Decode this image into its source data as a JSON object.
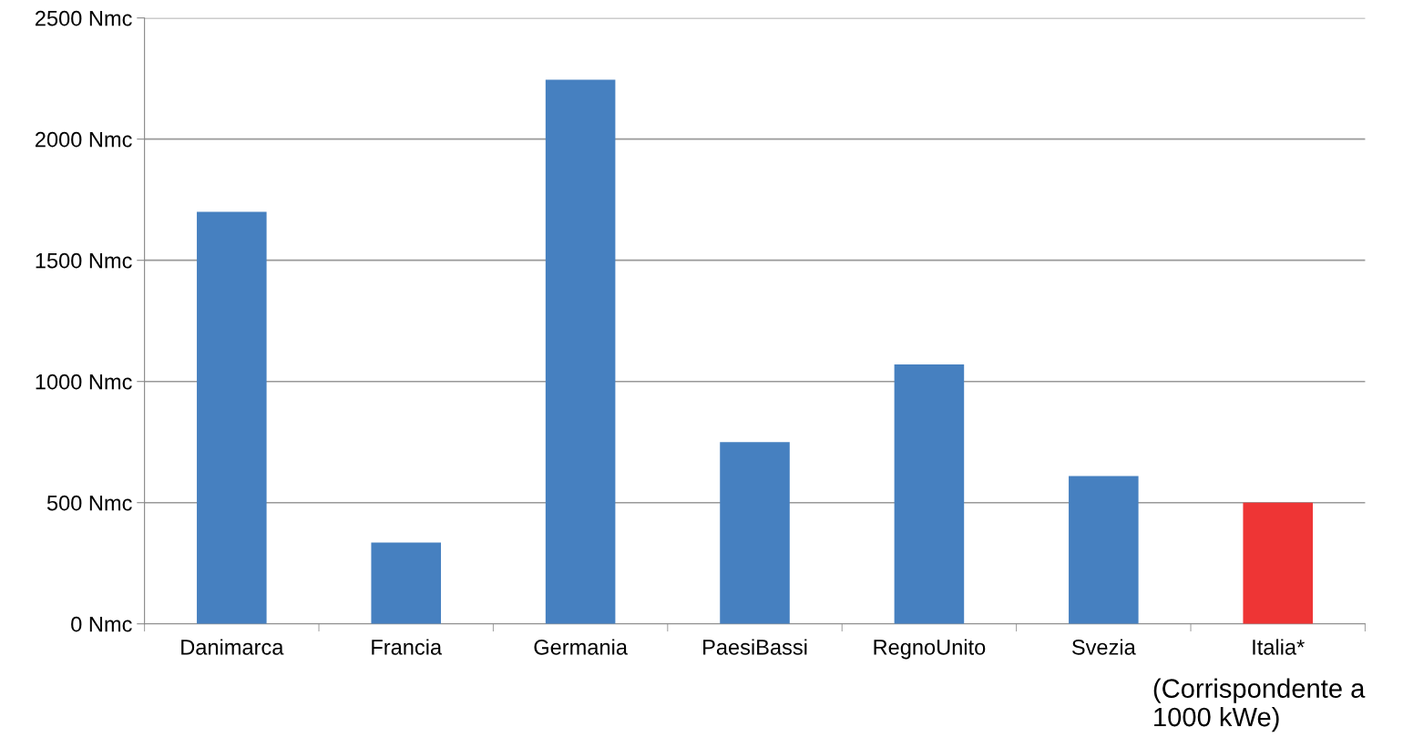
{
  "chart_data": {
    "type": "bar",
    "categories": [
      "Danimarca",
      "Francia",
      "Germania",
      "PaesiBassi",
      "RegnoUnito",
      "Svezia",
      "Italia*"
    ],
    "values": [
      1700,
      335,
      2245,
      750,
      1070,
      610,
      500
    ],
    "colors": [
      "#4680c0",
      "#4680c0",
      "#4680c0",
      "#4680c0",
      "#4680c0",
      "#4680c0",
      "#ee3535"
    ],
    "ylim": [
      0,
      2500
    ],
    "yticks": [
      {
        "value": 0,
        "label": "0 Nmc"
      },
      {
        "value": 500,
        "label": "500 Nmc"
      },
      {
        "value": 1000,
        "label": "1000 Nmc"
      },
      {
        "value": 1500,
        "label": "1500 Nmc"
      },
      {
        "value": 2000,
        "label": "2000 Nmc"
      },
      {
        "value": 2500,
        "label": "2500 Nmc"
      }
    ],
    "grid": "y",
    "annotations": [
      "(Corrispondente a 1000 kWe)"
    ]
  }
}
